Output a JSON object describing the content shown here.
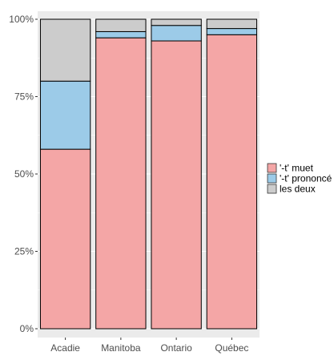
{
  "chart_data": {
    "type": "bar",
    "stacked": true,
    "percent": true,
    "categories": [
      "Acadie",
      "Manitoba",
      "Ontario",
      "Québec"
    ],
    "series": [
      {
        "name": "'-t' muet",
        "color": "#f4a6a6",
        "values": [
          58,
          94,
          93,
          95
        ]
      },
      {
        "name": "'-t' prononcé",
        "color": "#9ccbe8",
        "values": [
          22,
          2,
          5,
          2
        ]
      },
      {
        "name": "les deux",
        "color": "#cccccc",
        "values": [
          20,
          4,
          2,
          3
        ]
      }
    ],
    "title": "",
    "xlabel": "",
    "ylabel": "",
    "ylim": [
      0,
      100
    ],
    "yticks": [
      0,
      25,
      50,
      75,
      100
    ],
    "ytick_labels": [
      "0%",
      "25%",
      "50%",
      "75%",
      "100%"
    ],
    "grid": true,
    "legend_position": "right",
    "panel_background": "#ebebeb",
    "gridline_color": "#ffffff",
    "bar_outline_color": "#000000"
  }
}
